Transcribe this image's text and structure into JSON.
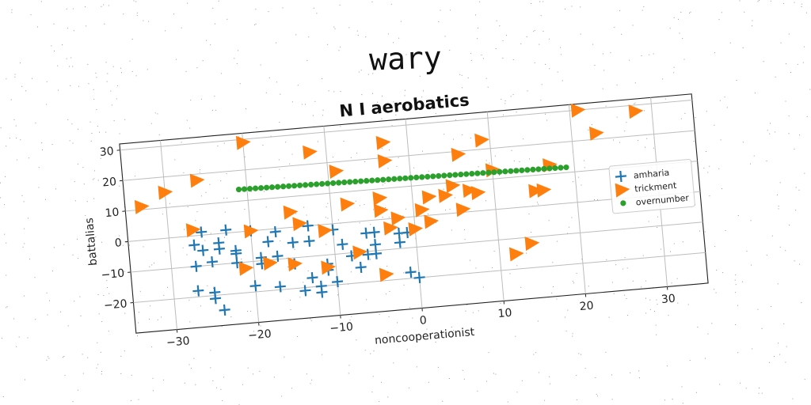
{
  "suptitle": "wary",
  "chart_data": {
    "type": "scatter",
    "title": "N I aerobatics",
    "xlabel": "noncooperationist",
    "ylabel": "battalias",
    "xlim": [
      -35,
      35
    ],
    "ylim": [
      -30,
      32
    ],
    "xticks": [
      -30,
      -20,
      -10,
      0,
      10,
      20,
      30
    ],
    "yticks": [
      -20,
      -10,
      0,
      10,
      20,
      30
    ],
    "xtick_labels": [
      "−30",
      "−20",
      "−10",
      "0",
      "10",
      "20",
      "30"
    ],
    "ytick_labels": [
      "−20",
      "−10",
      "0",
      "10",
      "20",
      "30"
    ],
    "grid": true,
    "legend_position": "right",
    "series": [
      {
        "name": "amharia",
        "marker": "plus",
        "color": "#1f77b4",
        "x": [
          -27,
          -25,
          -24,
          -20,
          -17,
          -14,
          -13,
          -11,
          -10,
          -8,
          -6,
          -5,
          -27,
          -25,
          -22,
          -19,
          -17,
          -15,
          -11,
          -7,
          -27,
          -24,
          -22,
          -18,
          -15,
          -13,
          -9,
          -6,
          -5,
          -26,
          -23,
          -20,
          -17,
          -13,
          -10,
          -5,
          -2,
          -1,
          -26,
          -24,
          -22,
          -19,
          -12,
          -2,
          0,
          -25,
          -12,
          -1
        ],
        "y": [
          -18,
          -21,
          -25,
          -18,
          -19,
          -21,
          -17,
          -15,
          -19,
          -11,
          -11,
          -11,
          -10,
          -9,
          -10,
          -11,
          -9,
          -12,
          -13,
          -15,
          -3,
          -3,
          -6,
          -4,
          -5,
          -5,
          -7,
          -4,
          -8,
          1,
          1,
          0,
          -1,
          0,
          -2,
          -4,
          -5,
          -5,
          -5,
          -5,
          -7,
          -9,
          -20,
          -8,
          -20,
          -19,
          -22,
          -18
        ]
      },
      {
        "name": "trickment",
        "marker": "triangle-right",
        "color": "#ff7f0e",
        "x": [
          -30,
          -20,
          -12,
          -9,
          -3,
          -3,
          6,
          9,
          21,
          23,
          28,
          -33,
          -26,
          -15,
          -8,
          -4,
          5,
          10,
          15,
          17,
          -27,
          -20,
          -14,
          -11,
          -4,
          -2,
          2,
          6,
          16,
          -21,
          -15,
          -11,
          -7,
          -3,
          1,
          4,
          8,
          12,
          14,
          -18,
          -4,
          0,
          2,
          7
        ],
        "y": [
          15,
          29,
          24,
          17,
          25,
          19,
          19,
          23,
          30,
          22,
          28,
          11,
          18,
          5,
          6,
          7,
          9,
          13,
          5,
          13,
          2,
          0,
          1,
          -2,
          3,
          0,
          -2,
          1,
          5,
          -12,
          -12,
          -14,
          -10,
          -3,
          2,
          6,
          6,
          -15,
          -12,
          -11,
          -18,
          -4,
          6,
          7
        ]
      },
      {
        "name": "overnumber",
        "marker": "circle",
        "color": "#2ca02c",
        "x": [
          -21,
          19
        ],
        "y": [
          13.8,
          11.7
        ],
        "points": 60
      }
    ]
  }
}
